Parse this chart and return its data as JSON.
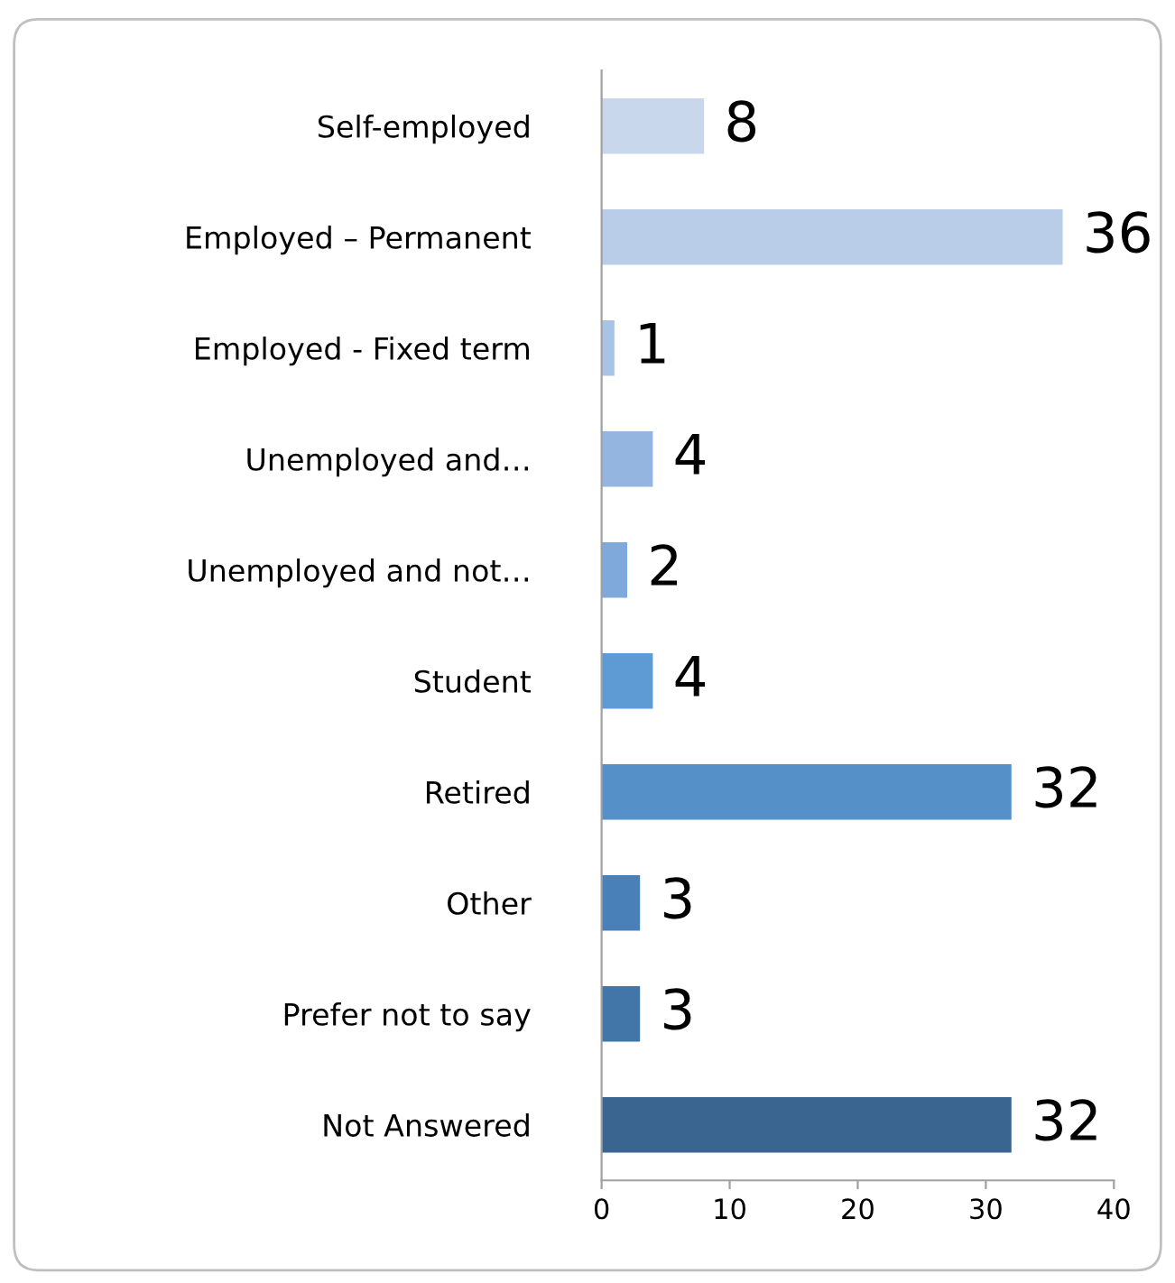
{
  "chart_data": {
    "type": "bar",
    "orientation": "horizontal",
    "categories": [
      "Self-employed",
      "Employed – Permanent",
      "Employed - Fixed term",
      "Unemployed and…",
      "Unemployed and not…",
      "Student",
      "Retired",
      "Other",
      "Prefer not to say",
      "Not Answered"
    ],
    "values": [
      8,
      36,
      1,
      4,
      2,
      4,
      32,
      3,
      3,
      32
    ],
    "colors": [
      "#c9d7ed",
      "#b9cde8",
      "#a9c3e5",
      "#94b5df",
      "#7fa8db",
      "#5e9bd5",
      "#5590c8",
      "#4a80b8",
      "#4376a8",
      "#3b6591"
    ],
    "xlim": [
      0,
      40
    ],
    "xticks": [
      0,
      10,
      20,
      30,
      40
    ],
    "data_labels": true,
    "grid": false,
    "legend": false
  }
}
